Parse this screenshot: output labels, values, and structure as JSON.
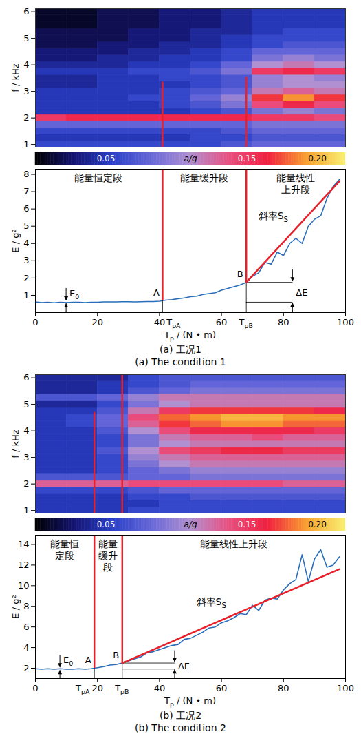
{
  "chart_data": [
    {
      "type": "heatmap",
      "y_label": "f / kHz",
      "xlim": [
        0,
        100
      ],
      "ylim": [
        0.9,
        6.12
      ],
      "yticks": [
        1,
        2,
        3,
        4,
        5,
        6
      ],
      "tick_labels": "y",
      "x_edges": [
        0,
        10,
        20,
        30,
        40,
        50,
        60,
        70,
        80,
        90,
        100
      ],
      "f_edges": [
        0.875,
        1.125,
        1.375,
        1.625,
        1.875,
        2.125,
        2.375,
        2.625,
        2.875,
        3.125,
        3.375,
        3.625,
        3.875,
        4.125,
        4.375,
        4.625,
        4.875,
        5.125,
        5.375,
        5.625,
        5.875,
        6.125
      ],
      "values": [
        [
          0.06,
          0.06,
          0.06,
          0.06,
          0.06,
          0.06,
          0.07,
          0.08,
          0.08,
          0.08
        ],
        [
          0.05,
          0.05,
          0.05,
          0.05,
          0.05,
          0.06,
          0.06,
          0.07,
          0.07,
          0.07
        ],
        [
          0.06,
          0.06,
          0.06,
          0.06,
          0.06,
          0.06,
          0.07,
          0.08,
          0.08,
          0.08
        ],
        [
          0.08,
          0.08,
          0.08,
          0.08,
          0.08,
          0.08,
          0.08,
          0.09,
          0.09,
          0.09
        ],
        [
          0.15,
          0.16,
          0.16,
          0.16,
          0.16,
          0.16,
          0.16,
          0.15,
          0.15,
          0.14
        ],
        [
          0.05,
          0.05,
          0.05,
          0.05,
          0.05,
          0.06,
          0.07,
          0.09,
          0.1,
          0.09
        ],
        [
          0.05,
          0.05,
          0.05,
          0.05,
          0.06,
          0.07,
          0.09,
          0.14,
          0.16,
          0.14
        ],
        [
          0.05,
          0.05,
          0.05,
          0.06,
          0.06,
          0.08,
          0.1,
          0.17,
          0.19,
          0.17
        ],
        [
          0.05,
          0.05,
          0.05,
          0.05,
          0.06,
          0.07,
          0.08,
          0.12,
          0.13,
          0.12
        ],
        [
          0.04,
          0.04,
          0.05,
          0.05,
          0.05,
          0.06,
          0.07,
          0.1,
          0.11,
          0.11
        ],
        [
          0.04,
          0.04,
          0.05,
          0.05,
          0.06,
          0.06,
          0.07,
          0.1,
          0.11,
          0.1
        ],
        [
          0.05,
          0.05,
          0.05,
          0.06,
          0.06,
          0.07,
          0.09,
          0.15,
          0.16,
          0.15
        ],
        [
          0.04,
          0.04,
          0.04,
          0.05,
          0.05,
          0.06,
          0.08,
          0.11,
          0.12,
          0.11
        ],
        [
          0.03,
          0.03,
          0.04,
          0.04,
          0.05,
          0.05,
          0.06,
          0.09,
          0.1,
          0.09
        ],
        [
          0.03,
          0.03,
          0.03,
          0.04,
          0.04,
          0.05,
          0.06,
          0.08,
          0.08,
          0.08
        ],
        [
          0.02,
          0.02,
          0.03,
          0.03,
          0.04,
          0.04,
          0.05,
          0.06,
          0.07,
          0.07
        ],
        [
          0.02,
          0.02,
          0.02,
          0.03,
          0.03,
          0.04,
          0.05,
          0.06,
          0.06,
          0.06
        ],
        [
          0.02,
          0.02,
          0.02,
          0.03,
          0.03,
          0.04,
          0.04,
          0.05,
          0.06,
          0.06
        ],
        [
          0.01,
          0.01,
          0.02,
          0.02,
          0.03,
          0.03,
          0.04,
          0.05,
          0.05,
          0.05
        ],
        [
          0.01,
          0.01,
          0.02,
          0.02,
          0.03,
          0.03,
          0.04,
          0.05,
          0.05,
          0.05
        ],
        [
          0.01,
          0.01,
          0.02,
          0.02,
          0.03,
          0.03,
          0.04,
          0.05,
          0.05,
          0.05
        ]
      ],
      "colorbar": {
        "range": [
          0,
          0.22
        ],
        "ticks": [
          0.05,
          0.15,
          {
            "value": 0.2,
            "label": "0.20"
          }
        ],
        "label": "a/g",
        "colors": [
          "#000000",
          "#141470",
          "#2a40c8",
          "#6868d8",
          "#b090d0",
          "#e85080",
          "#f02040",
          "#f8a030",
          "#f8f070"
        ]
      },
      "boundary_lines": {
        "x": [
          41,
          68
        ],
        "top": [
          3.35,
          3.55
        ],
        "color": "#e8202a"
      }
    },
    {
      "type": "line",
      "x_label": [
        "T",
        {
          "sub": "p"
        },
        " / (N • m)"
      ],
      "y_label": "E / g²",
      "xlim": [
        0,
        100
      ],
      "xticks": [
        0,
        20,
        40,
        60,
        80,
        100
      ],
      "ylim": [
        0,
        8.3
      ],
      "yticks": [
        1,
        2,
        3,
        4,
        5,
        6,
        7,
        8
      ],
      "series": [
        {
          "color": "#2a6ebb",
          "x": [
            0,
            2,
            4,
            6,
            8,
            10,
            12,
            14,
            16,
            18,
            20,
            22,
            24,
            26,
            28,
            30,
            32,
            34,
            36,
            38,
            40,
            42,
            44,
            46,
            48,
            50,
            52,
            54,
            56,
            58,
            60,
            62,
            64,
            66,
            68,
            70,
            72,
            74,
            76,
            78,
            80,
            82,
            84,
            86,
            88,
            90,
            92,
            94,
            96,
            98
          ],
          "values": [
            0.62,
            0.58,
            0.6,
            0.57,
            0.6,
            0.58,
            0.6,
            0.6,
            0.58,
            0.6,
            0.6,
            0.62,
            0.62,
            0.62,
            0.63,
            0.63,
            0.62,
            0.63,
            0.64,
            0.64,
            0.66,
            0.72,
            0.75,
            0.8,
            0.85,
            0.92,
            0.95,
            1.05,
            1.1,
            1.15,
            1.3,
            1.4,
            1.5,
            1.6,
            1.75,
            2.1,
            2.3,
            2.9,
            2.8,
            3.5,
            3.3,
            4.0,
            4.3,
            4.0,
            5.0,
            5.4,
            5.6,
            6.6,
            7.3,
            7.7
          ]
        }
      ],
      "fit": {
        "color": "#e8202a",
        "x": [
          68,
          98
        ],
        "values": [
          1.75,
          7.6
        ],
        "label": [
          "斜率S",
          {
            "sub": "S"
          }
        ],
        "label_x": 72,
        "label_y": 5.6
      },
      "stages": [
        "能量恒定段",
        "能量缓升段",
        "能量线性上升段"
      ],
      "points": [
        {
          "label": "A",
          "x": 41,
          "y": 0.68,
          "tick_label": [
            "T",
            {
              "sub": "pA"
            }
          ],
          "color": "#e8202a"
        },
        {
          "label": "B",
          "x": 68,
          "y": 1.75,
          "tick_label": [
            "T",
            {
              "sub": "pB"
            }
          ],
          "color": "#e8202a"
        }
      ],
      "E0": {
        "value": 0.6,
        "x": 10,
        "label": [
          "E",
          {
            "sub": "0"
          }
        ]
      },
      "delta_E": {
        "x": 83,
        "label": "ΔE"
      },
      "caption": [
        "(a) 工况1",
        "(a) The condition 1"
      ]
    },
    {
      "type": "heatmap",
      "y_label": "f / kHz",
      "xlim": [
        0,
        100
      ],
      "ylim": [
        0.9,
        6.12
      ],
      "yticks": [
        1,
        2,
        3,
        4,
        5,
        6
      ],
      "tick_labels": "y",
      "x_edges": [
        0,
        10,
        20,
        30,
        40,
        50,
        60,
        70,
        80,
        90,
        100
      ],
      "f_edges": [
        0.875,
        1.125,
        1.375,
        1.625,
        1.875,
        2.125,
        2.375,
        2.625,
        2.875,
        3.125,
        3.375,
        3.625,
        3.875,
        4.125,
        4.375,
        4.625,
        4.875,
        5.125,
        5.375,
        5.625,
        5.875,
        6.125
      ],
      "values": [
        [
          0.05,
          0.05,
          0.05,
          0.06,
          0.06,
          0.06,
          0.06,
          0.06,
          0.06,
          0.06
        ],
        [
          0.05,
          0.05,
          0.05,
          0.05,
          0.06,
          0.06,
          0.06,
          0.06,
          0.06,
          0.06
        ],
        [
          0.05,
          0.05,
          0.05,
          0.06,
          0.06,
          0.07,
          0.07,
          0.07,
          0.07,
          0.07
        ],
        [
          0.06,
          0.06,
          0.06,
          0.07,
          0.08,
          0.08,
          0.08,
          0.08,
          0.08,
          0.08
        ],
        [
          0.13,
          0.13,
          0.13,
          0.14,
          0.14,
          0.14,
          0.14,
          0.14,
          0.13,
          0.13
        ],
        [
          0.07,
          0.07,
          0.07,
          0.08,
          0.08,
          0.09,
          0.09,
          0.09,
          0.09,
          0.09
        ],
        [
          0.05,
          0.05,
          0.06,
          0.08,
          0.09,
          0.1,
          0.1,
          0.1,
          0.1,
          0.1
        ],
        [
          0.05,
          0.05,
          0.06,
          0.09,
          0.11,
          0.12,
          0.12,
          0.12,
          0.12,
          0.12
        ],
        [
          0.05,
          0.05,
          0.06,
          0.1,
          0.12,
          0.13,
          0.13,
          0.13,
          0.13,
          0.13
        ],
        [
          0.05,
          0.05,
          0.07,
          0.11,
          0.14,
          0.15,
          0.16,
          0.16,
          0.15,
          0.15
        ],
        [
          0.05,
          0.05,
          0.06,
          0.09,
          0.11,
          0.12,
          0.12,
          0.12,
          0.12,
          0.12
        ],
        [
          0.05,
          0.05,
          0.06,
          0.09,
          0.12,
          0.13,
          0.13,
          0.14,
          0.13,
          0.13
        ],
        [
          0.05,
          0.05,
          0.07,
          0.11,
          0.14,
          0.16,
          0.16,
          0.16,
          0.16,
          0.15
        ],
        [
          0.05,
          0.06,
          0.08,
          0.13,
          0.17,
          0.18,
          0.19,
          0.19,
          0.18,
          0.18
        ],
        [
          0.05,
          0.06,
          0.08,
          0.14,
          0.18,
          0.19,
          0.2,
          0.2,
          0.19,
          0.19
        ],
        [
          0.05,
          0.05,
          0.07,
          0.12,
          0.15,
          0.17,
          0.17,
          0.17,
          0.17,
          0.16
        ],
        [
          0.04,
          0.04,
          0.06,
          0.09,
          0.11,
          0.12,
          0.12,
          0.12,
          0.12,
          0.12
        ],
        [
          0.07,
          0.07,
          0.08,
          0.1,
          0.12,
          0.12,
          0.12,
          0.12,
          0.12,
          0.12
        ],
        [
          0.04,
          0.04,
          0.05,
          0.07,
          0.08,
          0.09,
          0.09,
          0.09,
          0.09,
          0.09
        ],
        [
          0.04,
          0.04,
          0.05,
          0.06,
          0.07,
          0.08,
          0.08,
          0.08,
          0.08,
          0.08
        ],
        [
          0.04,
          0.04,
          0.04,
          0.06,
          0.07,
          0.07,
          0.07,
          0.07,
          0.07,
          0.07
        ]
      ],
      "colorbar": {
        "range": [
          0,
          0.22
        ],
        "ticks": [
          0.05,
          0.15,
          {
            "value": 0.2,
            "label": "0.20"
          }
        ],
        "label": "a/g",
        "colors": [
          "#000000",
          "#141470",
          "#2a40c8",
          "#6868d8",
          "#b090d0",
          "#e85080",
          "#f02040",
          "#f8a030",
          "#f8f070"
        ]
      },
      "boundary_lines": {
        "x": [
          19,
          28
        ],
        "top": [
          4.7,
          6.1
        ],
        "color": "#e8202a"
      }
    },
    {
      "type": "line",
      "x_label": [
        "T",
        {
          "sub": "p"
        },
        " / (N • m)"
      ],
      "y_label": "E / g²",
      "xlim": [
        0,
        100
      ],
      "xticks": [
        0,
        20,
        40,
        60,
        80,
        100
      ],
      "ylim": [
        1,
        14.9
      ],
      "yticks": [
        2,
        4,
        6,
        8,
        10,
        12,
        14
      ],
      "series": [
        {
          "color": "#2a6ebb",
          "x": [
            0,
            2,
            4,
            6,
            8,
            10,
            12,
            14,
            16,
            18,
            20,
            22,
            24,
            26,
            28,
            30,
            32,
            34,
            36,
            38,
            40,
            42,
            44,
            46,
            48,
            50,
            52,
            54,
            56,
            58,
            60,
            62,
            64,
            66,
            68,
            70,
            72,
            74,
            76,
            78,
            80,
            82,
            84,
            86,
            88,
            90,
            92,
            94,
            96,
            98
          ],
          "values": [
            1.95,
            1.9,
            1.95,
            1.9,
            1.95,
            1.9,
            1.9,
            1.95,
            1.9,
            1.95,
            2.05,
            2.15,
            2.3,
            2.35,
            2.5,
            2.7,
            2.9,
            3.1,
            3.5,
            3.6,
            3.8,
            4.0,
            4.2,
            4.3,
            4.8,
            4.9,
            5.2,
            5.5,
            5.9,
            6.0,
            6.4,
            6.6,
            6.9,
            7.3,
            7.2,
            8.1,
            7.6,
            8.6,
            8.8,
            8.7,
            9.6,
            10.2,
            10.6,
            13.0,
            10.4,
            12.6,
            13.5,
            11.8,
            12.0,
            12.8
          ]
        }
      ],
      "fit": {
        "color": "#e8202a",
        "x": [
          28,
          98
        ],
        "values": [
          2.5,
          11.6
        ],
        "label": [
          "斜率S",
          {
            "sub": "S"
          }
        ],
        "label_x": 52,
        "label_y": 8.4
      },
      "stages": [
        "能量恒定段",
        "能量缓升段",
        "能量线性上升段"
      ],
      "points": [
        {
          "label": "A",
          "x": 19,
          "y": 2.0,
          "tick_label": [
            "T",
            {
              "sub": "pA"
            }
          ],
          "color": "#e8202a"
        },
        {
          "label": "B",
          "x": 28,
          "y": 2.5,
          "tick_label": [
            "T",
            {
              "sub": "pB"
            }
          ],
          "color": "#e8202a"
        }
      ],
      "E0": {
        "value": 1.92,
        "x": 8,
        "label": [
          "E",
          {
            "sub": "0"
          }
        ]
      },
      "delta_E": {
        "x": 45,
        "label": "ΔE"
      },
      "caption": [
        "(b) 工况2",
        "(b) The condition 2"
      ]
    }
  ]
}
